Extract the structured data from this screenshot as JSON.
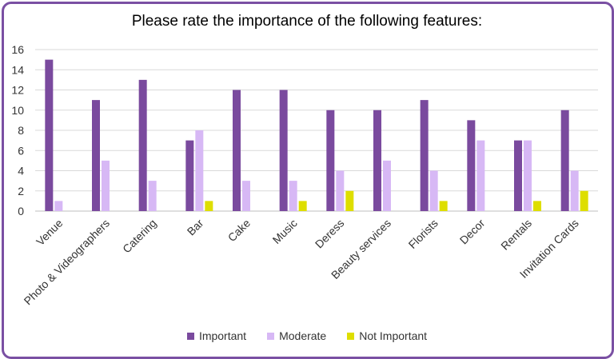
{
  "chart_data": {
    "type": "bar",
    "title": "Please rate the importance of the following features:",
    "categories": [
      "Venue",
      "Photo & Videographers",
      "Catering",
      "Bar",
      "Cake",
      "Music",
      "Deress",
      "Beauty services",
      "Florists",
      "Decor",
      "Rentals",
      "Invitation Cards"
    ],
    "series": [
      {
        "name": "Important",
        "color": "#7a4a9e",
        "values": [
          15,
          11,
          13,
          7,
          12,
          12,
          10,
          10,
          11,
          9,
          7,
          10
        ]
      },
      {
        "name": "Moderate",
        "color": "#d7b8f5",
        "values": [
          1,
          5,
          3,
          8,
          3,
          3,
          4,
          5,
          4,
          7,
          7,
          4
        ]
      },
      {
        "name": "Not Important",
        "color": "#dede00",
        "values": [
          0,
          0,
          0,
          1,
          0,
          1,
          2,
          0,
          1,
          0,
          1,
          2
        ]
      }
    ],
    "ylim": [
      0,
      16
    ],
    "yticks": [
      0,
      2,
      4,
      6,
      8,
      10,
      12,
      14,
      16
    ],
    "grid": true,
    "legend": "bottom"
  }
}
